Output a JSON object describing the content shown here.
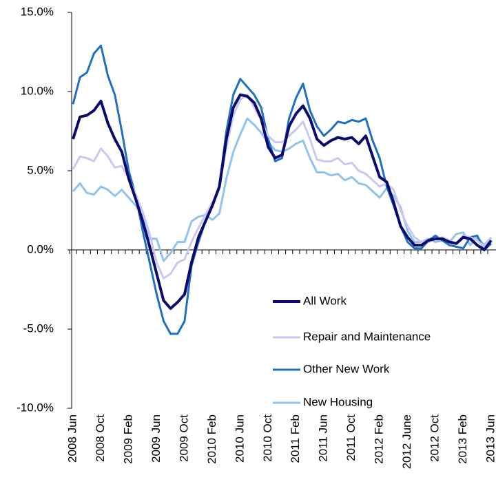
{
  "chart_data": {
    "type": "line",
    "categories": [
      "2008 Jun",
      null,
      null,
      null,
      "2008 Oct",
      null,
      null,
      null,
      "2009 Feb",
      null,
      null,
      null,
      "2009 Jun",
      null,
      null,
      null,
      "2009 Oct",
      null,
      null,
      null,
      "2010 Feb",
      null,
      null,
      null,
      "2010 Jun",
      null,
      null,
      null,
      "2010 Oct",
      null,
      null,
      null,
      "2011 Feb",
      null,
      null,
      null,
      "2011 Jun",
      null,
      null,
      null,
      "2011 Oct",
      null,
      null,
      null,
      "2012 Feb",
      null,
      null,
      null,
      "2012 June",
      null,
      null,
      null,
      "2012 Oct",
      null,
      null,
      null,
      "2013 Feb",
      null,
      null,
      null,
      "2013 Jun"
    ],
    "series": [
      {
        "name": "All Work",
        "color": "#0b0b6b",
        "values": [
          7.0,
          8.4,
          8.5,
          8.8,
          9.4,
          8.0,
          7.0,
          6.2,
          4.5,
          3.2,
          1.8,
          0.2,
          -1.5,
          -3.2,
          -3.7,
          -3.3,
          -2.8,
          -0.8,
          0.8,
          1.8,
          2.8,
          4.0,
          7.0,
          9.0,
          9.8,
          9.7,
          9.3,
          8.3,
          6.5,
          5.8,
          6.0,
          7.8,
          8.6,
          9.1,
          8.3,
          7.0,
          6.6,
          6.9,
          7.1,
          7.0,
          7.1,
          6.7,
          7.2,
          5.9,
          4.6,
          4.3,
          3.0,
          1.5,
          0.8,
          0.3,
          0.3,
          0.6,
          0.7,
          0.7,
          0.5,
          0.4,
          0.8,
          0.7,
          0.3,
          0.0,
          0.6
        ]
      },
      {
        "name": "Repair and Maintenance",
        "color": "#c8c8f0",
        "values": [
          5.1,
          5.9,
          5.8,
          5.6,
          6.4,
          5.9,
          5.2,
          5.3,
          4.5,
          3.5,
          2.4,
          1.0,
          -0.8,
          -1.8,
          -1.5,
          -0.8,
          -0.6,
          0.5,
          1.4,
          2.2,
          3.0,
          3.8,
          6.5,
          8.5,
          9.5,
          9.8,
          9.0,
          8.2,
          7.2,
          6.8,
          6.8,
          7.2,
          7.6,
          8.1,
          7.0,
          5.7,
          5.6,
          5.6,
          5.8,
          5.4,
          5.5,
          5.0,
          4.8,
          4.4,
          4.0,
          4.2,
          3.8,
          2.5,
          1.5,
          0.8,
          0.5,
          0.5,
          0.7,
          0.8,
          0.6,
          0.4,
          0.9,
          0.8,
          0.6,
          0.2,
          0.8
        ]
      },
      {
        "name": "Other New Work",
        "color": "#1f6fc4",
        "values": [
          9.2,
          10.9,
          11.2,
          12.4,
          12.9,
          11.0,
          9.8,
          7.5,
          5.0,
          3.4,
          1.2,
          -0.8,
          -2.8,
          -4.5,
          -5.3,
          -5.3,
          -4.5,
          -1.0,
          0.5,
          1.8,
          2.8,
          4.0,
          7.5,
          9.8,
          10.8,
          10.3,
          9.8,
          9.0,
          7.0,
          5.6,
          5.8,
          8.3,
          9.6,
          10.5,
          8.8,
          7.8,
          7.2,
          7.6,
          8.1,
          8.0,
          8.2,
          8.1,
          8.3,
          6.9,
          5.8,
          4.0,
          2.8,
          1.5,
          0.5,
          0.1,
          0.1,
          0.6,
          0.9,
          0.6,
          0.3,
          0.2,
          0.1,
          0.8,
          0.9,
          0.0,
          0.4
        ]
      },
      {
        "name": "New Housing",
        "color": "#8fc3f0",
        "values": [
          3.7,
          4.2,
          3.6,
          3.5,
          4.0,
          3.8,
          3.4,
          3.8,
          3.3,
          2.8,
          2.1,
          0.7,
          0.7,
          -0.7,
          -0.2,
          0.5,
          0.5,
          1.8,
          2.1,
          2.2,
          1.9,
          2.3,
          4.5,
          6.2,
          7.3,
          8.3,
          7.9,
          7.4,
          6.8,
          6.3,
          6.2,
          6.4,
          6.7,
          6.9,
          5.8,
          4.9,
          4.9,
          4.7,
          4.8,
          4.4,
          4.6,
          4.2,
          4.1,
          3.7,
          3.3,
          3.9,
          3.4,
          2.7,
          1.2,
          0.5,
          0.5,
          0.7,
          0.5,
          0.6,
          0.5,
          1.0,
          1.1,
          0.3,
          0.8,
          0.3,
          0.8
        ]
      }
    ],
    "ylim": [
      -10,
      15
    ],
    "yticks": [
      {
        "value": -10,
        "label": "-10.0%"
      },
      {
        "value": -5,
        "label": "-5.0%"
      },
      {
        "value": 0,
        "label": "0.0%"
      },
      {
        "value": 5,
        "label": "5.0%"
      },
      {
        "value": 10,
        "label": "10.0%"
      },
      {
        "value": 15,
        "label": "15.0%"
      }
    ],
    "grid": false,
    "legend": "lower right"
  }
}
